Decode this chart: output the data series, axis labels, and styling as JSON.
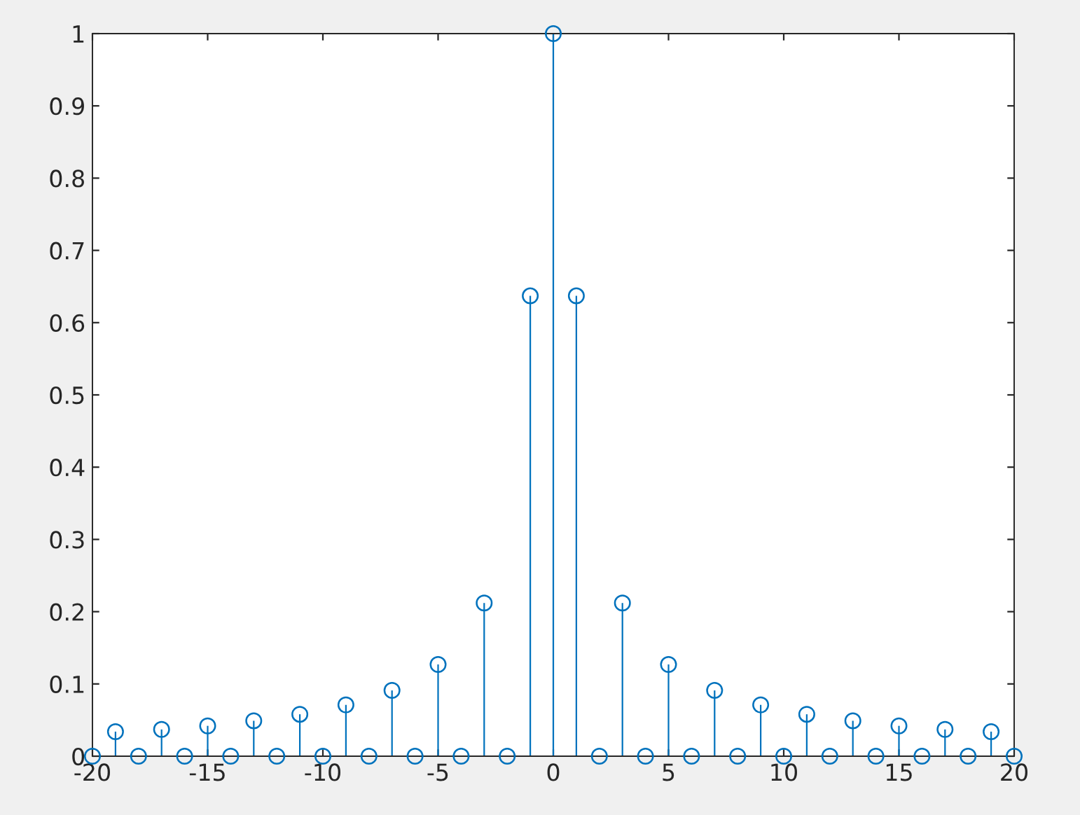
{
  "chart_data": {
    "type": "lollipop",
    "x": [
      -20,
      -19,
      -18,
      -17,
      -16,
      -15,
      -14,
      -13,
      -12,
      -11,
      -10,
      -9,
      -8,
      -7,
      -6,
      -5,
      -4,
      -3,
      -2,
      -1,
      0,
      1,
      2,
      3,
      4,
      5,
      6,
      7,
      8,
      9,
      10,
      11,
      12,
      13,
      14,
      15,
      16,
      17,
      18,
      19,
      20
    ],
    "values": [
      0,
      0.034,
      0,
      0.037,
      0,
      0.042,
      0,
      0.049,
      0,
      0.058,
      0,
      0.071,
      0,
      0.091,
      0,
      0.127,
      0,
      0.212,
      0,
      0.637,
      1,
      0.637,
      0,
      0.212,
      0,
      0.127,
      0,
      0.091,
      0,
      0.071,
      0,
      0.058,
      0,
      0.049,
      0,
      0.042,
      0,
      0.037,
      0,
      0.034,
      0
    ],
    "color": "#0072bd",
    "marker": "circle",
    "xlim": [
      -20,
      20
    ],
    "xticks": [
      -20,
      -15,
      -10,
      -5,
      0,
      5,
      10,
      15,
      20
    ],
    "ylim": [
      0,
      1
    ],
    "yticks": [
      0,
      0.1,
      0.2,
      0.3,
      0.4,
      0.5,
      0.6,
      0.7,
      0.8,
      0.9,
      1
    ],
    "grid": false
  }
}
